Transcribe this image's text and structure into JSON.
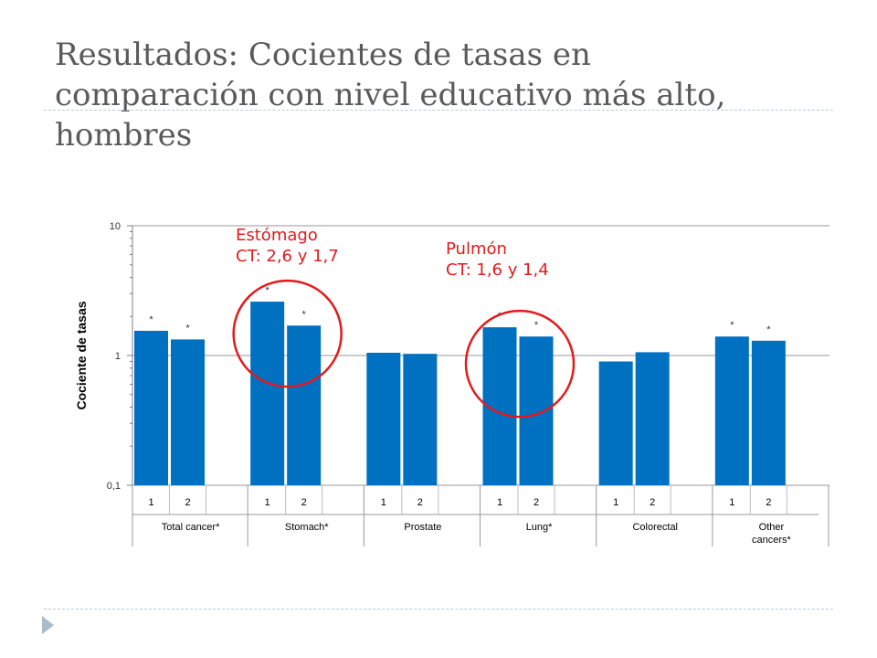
{
  "slide": {
    "title": "Resultados: Cocientes de tasas en\ncomparación con nivel educativo más alto,\nhombres"
  },
  "annotations": [
    {
      "title": "Estómago",
      "text": "CT: 2,6 y 1,7",
      "color": "#e31a1c"
    },
    {
      "title": "Pulmón",
      "text": "CT: 1,6 y 1,4",
      "color": "#e31a1c"
    }
  ],
  "chart_data": {
    "type": "bar",
    "ylabel": "Cociente de tasas",
    "yscale": "log",
    "ylim": [
      0.1,
      10
    ],
    "yticks": [
      {
        "value": 10,
        "label": "10"
      },
      {
        "value": 1,
        "label": "1"
      },
      {
        "value": 0.1,
        "label": "0,1"
      }
    ],
    "bar_color": "#0070c0",
    "groups": [
      {
        "name": "Total cancer*",
        "bars": [
          {
            "label": "1",
            "value": 1.55,
            "sig": "*"
          },
          {
            "label": "2",
            "value": 1.33,
            "sig": "*"
          }
        ]
      },
      {
        "name": "Stomach*",
        "bars": [
          {
            "label": "1",
            "value": 2.6,
            "sig": "*"
          },
          {
            "label": "2",
            "value": 1.7,
            "sig": "*"
          }
        ]
      },
      {
        "name": "Prostate",
        "bars": [
          {
            "label": "1",
            "value": 1.05,
            "sig": ""
          },
          {
            "label": "2",
            "value": 1.03,
            "sig": ""
          }
        ]
      },
      {
        "name": "Lung*",
        "bars": [
          {
            "label": "1",
            "value": 1.65,
            "sig": "*"
          },
          {
            "label": "2",
            "value": 1.4,
            "sig": "*"
          }
        ]
      },
      {
        "name": "Colorectal",
        "bars": [
          {
            "label": "1",
            "value": 0.9,
            "sig": ""
          },
          {
            "label": "2",
            "value": 1.06,
            "sig": ""
          }
        ]
      },
      {
        "name": "Other\ncancers*",
        "bars": [
          {
            "label": "1",
            "value": 1.4,
            "sig": "*"
          },
          {
            "label": "2",
            "value": 1.3,
            "sig": "*"
          }
        ]
      }
    ],
    "highlight_groups": [
      "Stomach*",
      "Lung*"
    ],
    "highlight_color": "#e31a1c"
  }
}
